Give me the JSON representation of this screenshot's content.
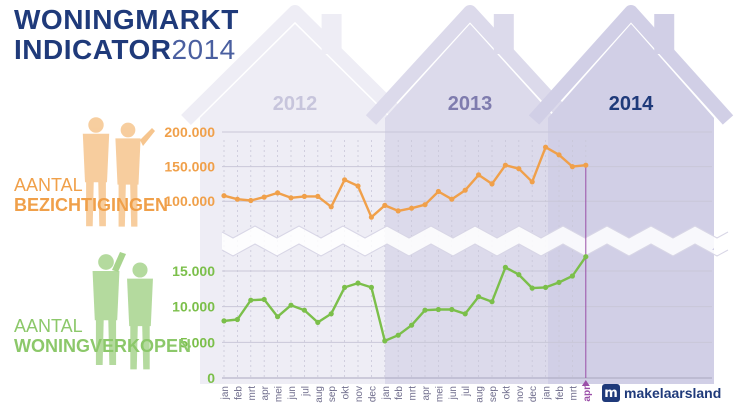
{
  "title": {
    "line1": "WONINGMARKT",
    "line2_bold": "INDICATOR",
    "line2_year": "2014"
  },
  "labels": {
    "viewings": {
      "line1": "AANTAL",
      "line2": "BEZICHTIGINGEN"
    },
    "sales": {
      "line1": "AANTAL",
      "line2": "WONINGVERKOPEN"
    }
  },
  "logo": {
    "mark": "m",
    "text": "makelaarsland"
  },
  "colors": {
    "title": "#1f3a7a",
    "viewings": "#f0a04a",
    "sales": "#7bbf4a",
    "sales_label": "#8cc86a",
    "highlight_month": "#9b4fa8",
    "house_2012": "#eeedf5",
    "house_2013": "#dcdaeb",
    "house_2014": "#d1cfe6"
  },
  "chart_data": [
    {
      "type": "line",
      "name": "viewings",
      "x": [
        "jan",
        "feb",
        "mrt",
        "apr",
        "mei",
        "jun",
        "jul",
        "aug",
        "sep",
        "okt",
        "nov",
        "dec",
        "jan",
        "feb",
        "mrt",
        "apr",
        "mei",
        "jun",
        "jul",
        "aug",
        "sep",
        "okt",
        "nov",
        "dec",
        "jan",
        "feb",
        "mrt",
        "apr"
      ],
      "years": [
        "2012",
        "2013",
        "2014"
      ],
      "values": [
        108000,
        103000,
        101000,
        106000,
        112000,
        105000,
        107000,
        107000,
        92000,
        131000,
        122000,
        77000,
        94000,
        86000,
        90000,
        95000,
        114000,
        103000,
        116000,
        138000,
        125000,
        152000,
        147000,
        128000,
        178000,
        167000,
        150000,
        152000
      ],
      "yticks": [
        "200.000",
        "150.000",
        "100.000"
      ],
      "ylim": [
        70000,
        200000
      ]
    },
    {
      "type": "line",
      "name": "sales",
      "x": [
        "jan",
        "feb",
        "mrt",
        "apr",
        "mei",
        "jun",
        "jul",
        "aug",
        "sep",
        "okt",
        "nov",
        "dec",
        "jan",
        "feb",
        "mrt",
        "apr",
        "mei",
        "jun",
        "jul",
        "aug",
        "sep",
        "okt",
        "nov",
        "dec",
        "jan",
        "feb",
        "mrt",
        "apr"
      ],
      "values": [
        8000,
        8200,
        10900,
        11000,
        8600,
        10200,
        9500,
        7800,
        9000,
        12700,
        13300,
        12700,
        5200,
        6000,
        7400,
        9500,
        9600,
        9600,
        9000,
        11400,
        10700,
        15500,
        14500,
        12600,
        12700,
        13400,
        14300,
        17000
      ],
      "yticks": [
        "15.000",
        "10.000",
        "5.000",
        "0"
      ],
      "ylim": [
        0,
        17500
      ],
      "highlight_month": "apr"
    }
  ]
}
